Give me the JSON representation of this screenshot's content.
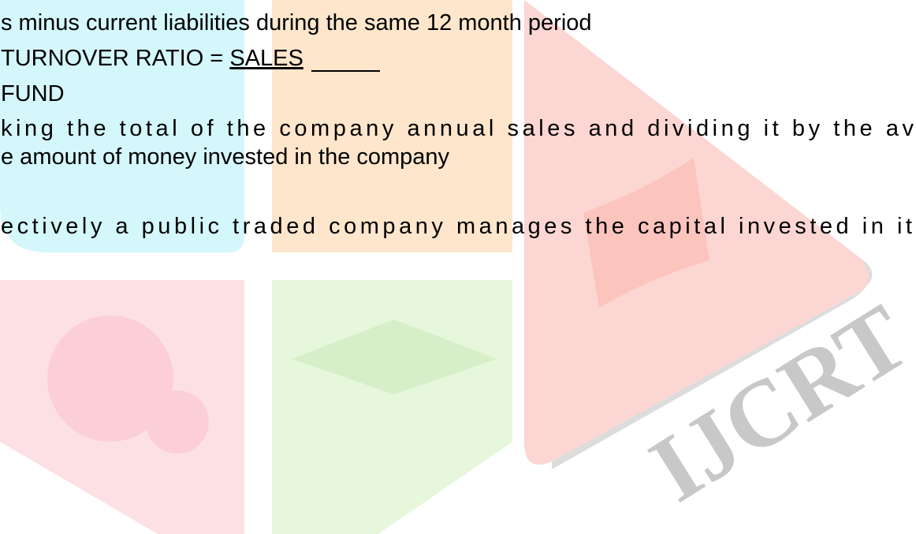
{
  "document": {
    "lines": [
      "s minus current liabilities during the same 12 month period",
      "TURNOVER RATIO = ",
      "FUND",
      "king the total of the company annual sales and dividing it by the av",
      "e amount of money invested in the company",
      "ectively a public traded company manages the capital invested in it"
    ],
    "formula_numerator": "SALES",
    "watermark": "IJCRT"
  }
}
